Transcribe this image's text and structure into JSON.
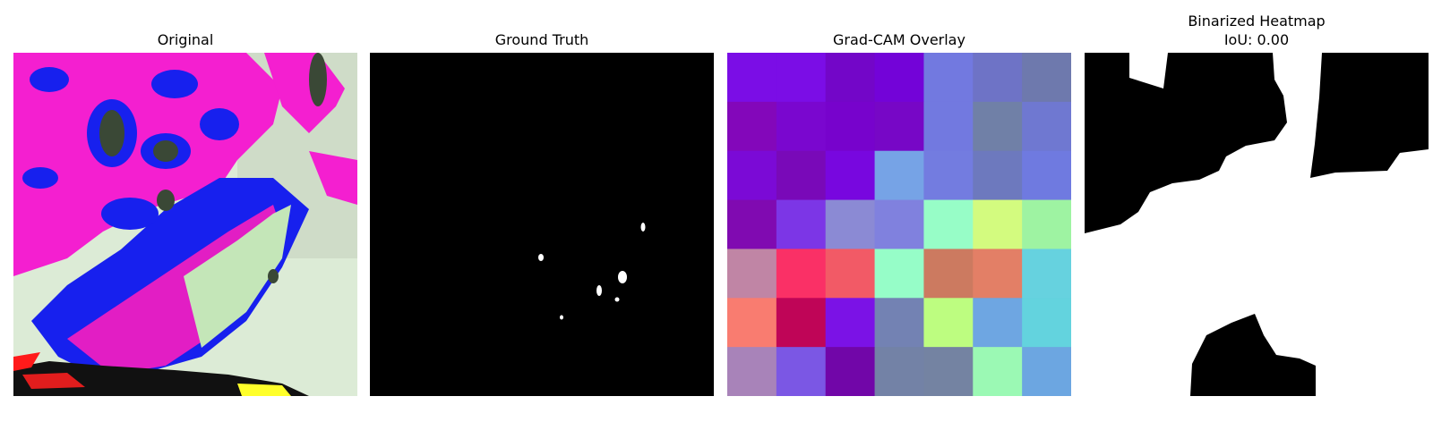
{
  "panels": [
    {
      "title": "Original"
    },
    {
      "title": "Ground Truth"
    },
    {
      "title": "Grad-CAM Overlay"
    },
    {
      "title_line1": "Binarized Heatmap",
      "title_line2": "IoU: 0.00"
    }
  ],
  "gradcam_grid": [
    [
      "#7b0de6",
      "#7b0de6",
      "#7306c8",
      "#7303d8",
      "#7279e0",
      "#6e73c6",
      "#6e79ad"
    ],
    [
      "#8307ba",
      "#7a07cf",
      "#7703cc",
      "#7707c6",
      "#7279e0",
      "#7080a7",
      "#6f78d1"
    ],
    [
      "#7b0ad6",
      "#7909b8",
      "#7807df",
      "#76a3e6",
      "#737ce0",
      "#6d79be",
      "#6f7ae0"
    ],
    [
      "#800ab1",
      "#7c36e6",
      "#8b8ad4",
      "#8081de",
      "#97fdc7",
      "#d3fb7f",
      "#9ef3a2"
    ],
    [
      "#c085a5",
      "#fa3066",
      "#f25a66",
      "#96fdc8",
      "#cc7a60",
      "#e37f66",
      "#66d2df"
    ],
    [
      "#f97c70",
      "#bf0557",
      "#7b12e6",
      "#7382b3",
      "#bdfd80",
      "#6ea6e2",
      "#63d3de"
    ],
    [
      "#a883b9",
      "#7b57e4",
      "#7106a8",
      "#7382a6",
      "#7483a2",
      "#9bf9b4",
      "#6ca6e1"
    ]
  ],
  "colors": {
    "original_background": "#dcebd6",
    "magenta": "#f41fd0",
    "blue": "#1720ee",
    "dark_spot": "#3a4836",
    "mask_black": "#000000",
    "mask_white": "#ffffff"
  }
}
